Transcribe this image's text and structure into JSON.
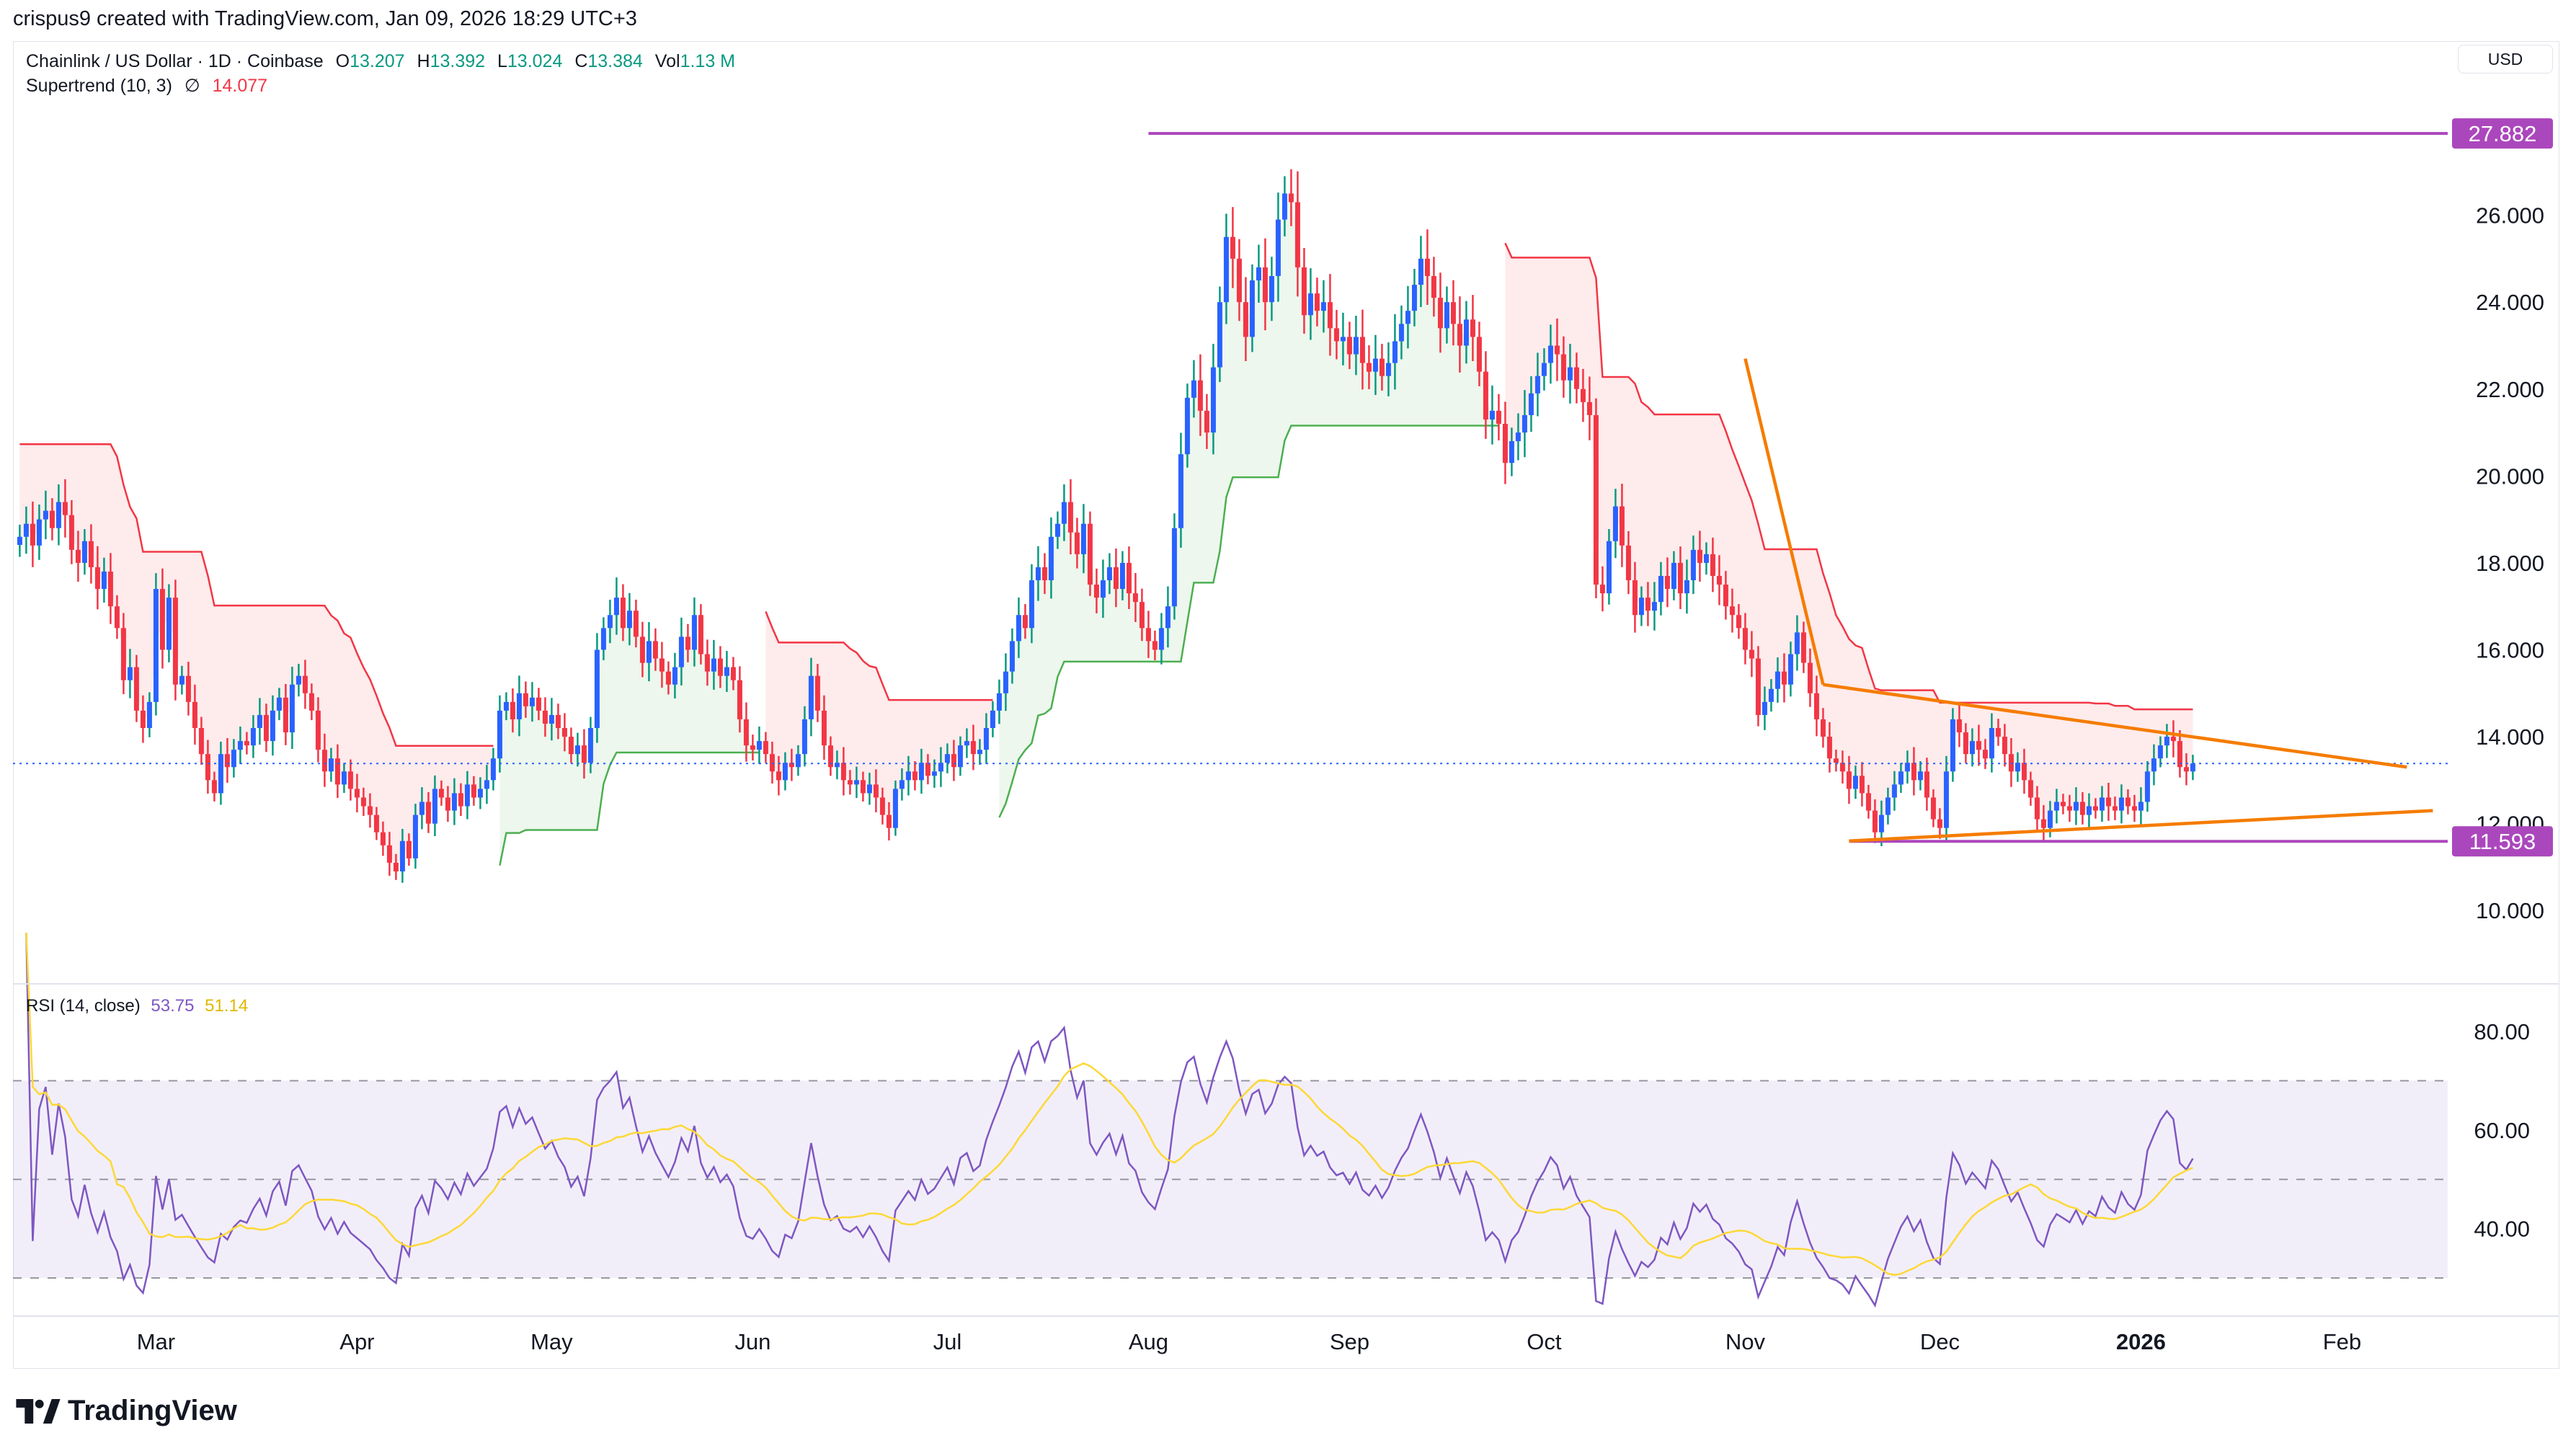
{
  "credit": "crispus9 created with TradingView.com, Jan 09, 2026 18:29 UTC+3",
  "symbol": {
    "name": "Chainlink / US Dollar · 1D · Coinbase",
    "o_label": "O",
    "o": "13.207",
    "h_label": "H",
    "h": "13.392",
    "l_label": "L",
    "l": "13.024",
    "c_label": "C",
    "c": "13.384",
    "vol_label": "Vol",
    "vol": "1.13 M"
  },
  "supertrend": {
    "label": "Supertrend (10, 3)",
    "symbol": "∅",
    "value": "14.077"
  },
  "rsi": {
    "label": "RSI (14, close)",
    "value": "53.75",
    "ma_value": "51.14"
  },
  "currency": "USD",
  "brand": "TradingView",
  "colors": {
    "up_body": "#2962ff",
    "up_wick": "#089981",
    "down": "#f23645",
    "st_up": "#4caf50",
    "st_down": "#f23645",
    "level": "#ab47bc",
    "trend": "#f57c00",
    "rsi": "#7e57c2",
    "rsi_ma": "#fdd835",
    "last_price": "#2962ff"
  },
  "chart_data": {
    "type": "candlestick",
    "interval": "1D",
    "start_date": "2025-02-08",
    "end_date": "2026-01-09",
    "closes": [
      18.6,
      18.9,
      18.4,
      19.0,
      19.2,
      18.8,
      19.4,
      19.1,
      18.3,
      18.0,
      18.5,
      17.9,
      17.4,
      17.8,
      17.0,
      16.5,
      15.3,
      15.6,
      14.6,
      14.2,
      14.8,
      17.4,
      16.0,
      17.2,
      15.2,
      15.4,
      14.8,
      14.2,
      13.6,
      13.0,
      12.7,
      13.6,
      13.3,
      13.7,
      13.9,
      13.8,
      14.2,
      14.5,
      13.9,
      14.6,
      14.9,
      14.1,
      15.2,
      15.4,
      15.0,
      14.6,
      13.7,
      13.2,
      13.5,
      12.9,
      13.2,
      12.8,
      12.6,
      12.4,
      12.2,
      11.8,
      11.5,
      11.1,
      10.9,
      11.6,
      11.2,
      12.2,
      12.5,
      12.0,
      12.8,
      12.6,
      12.3,
      12.7,
      12.4,
      12.9,
      12.6,
      12.8,
      13.0,
      13.5,
      14.6,
      14.8,
      14.4,
      15.0,
      14.7,
      14.9,
      14.6,
      14.3,
      14.5,
      14.2,
      14.0,
      13.6,
      13.8,
      13.4,
      14.2,
      16.0,
      16.5,
      16.8,
      17.2,
      16.5,
      16.9,
      16.3,
      15.7,
      16.2,
      15.8,
      15.5,
      15.2,
      15.6,
      16.3,
      16.0,
      16.8,
      15.9,
      15.5,
      15.8,
      15.4,
      15.6,
      15.3,
      14.4,
      13.8,
      13.7,
      13.9,
      13.6,
      13.2,
      13.0,
      13.4,
      13.3,
      13.6,
      14.4,
      15.4,
      14.6,
      13.8,
      13.3,
      13.4,
      13.0,
      12.9,
      13.0,
      12.7,
      12.9,
      12.6,
      12.2,
      11.9,
      12.8,
      13.0,
      13.2,
      13.0,
      13.4,
      13.1,
      13.2,
      13.4,
      13.6,
      13.3,
      13.8,
      13.9,
      13.6,
      13.7,
      14.2,
      14.6,
      15.0,
      15.5,
      16.2,
      16.8,
      16.5,
      17.6,
      17.9,
      17.6,
      18.6,
      18.9,
      19.4,
      18.7,
      18.2,
      18.9,
      17.5,
      17.2,
      17.6,
      17.9,
      17.4,
      18.0,
      17.3,
      17.1,
      16.5,
      16.2,
      16.0,
      16.5,
      17.0,
      18.8,
      20.5,
      21.8,
      22.2,
      21.5,
      21.0,
      22.5,
      24.0,
      25.5,
      25.0,
      24.0,
      23.2,
      24.5,
      24.8,
      24.0,
      24.6,
      25.9,
      26.5,
      26.3,
      24.8,
      23.7,
      24.2,
      23.8,
      24.0,
      23.4,
      23.1,
      23.2,
      22.8,
      23.2,
      22.6,
      22.4,
      22.7,
      22.3,
      22.6,
      23.1,
      23.5,
      23.8,
      24.4,
      25.0,
      24.6,
      24.1,
      23.4,
      24.0,
      23.5,
      23.0,
      23.6,
      23.2,
      22.4,
      21.3,
      21.5,
      21.2,
      20.3,
      20.8,
      21.0,
      21.4,
      21.9,
      22.3,
      22.6,
      23.0,
      22.8,
      22.2,
      22.5,
      22.0,
      21.7,
      21.4,
      17.5,
      17.3,
      18.5,
      19.3,
      18.4,
      17.6,
      16.8,
      17.2,
      16.9,
      17.1,
      17.7,
      17.4,
      18.0,
      17.3,
      17.6,
      18.3,
      18.0,
      18.2,
      17.7,
      17.5,
      17.0,
      16.8,
      16.5,
      16.0,
      15.8,
      14.5,
      14.8,
      15.1,
      15.5,
      15.2,
      15.9,
      16.4,
      15.7,
      15.0,
      14.4,
      14.0,
      13.5,
      13.4,
      13.2,
      12.8,
      13.1,
      12.7,
      12.3,
      11.8,
      12.2,
      12.6,
      12.9,
      13.2,
      13.4,
      13.0,
      13.2,
      12.6,
      12.1,
      11.9,
      13.2,
      14.4,
      14.1,
      13.6,
      13.9,
      13.7,
      13.5,
      14.2,
      14.0,
      13.6,
      13.2,
      13.4,
      13.0,
      12.6,
      12.1,
      11.9,
      12.3,
      12.5,
      12.4,
      12.3,
      12.5,
      12.2,
      12.4,
      12.3,
      12.6,
      12.4,
      12.3,
      12.6,
      12.4,
      12.3,
      12.5,
      13.2,
      13.5,
      13.8,
      14.0,
      13.9,
      13.3,
      13.2,
      13.384
    ],
    "last_price": 13.384,
    "y_ticks": [
      "10.000",
      "12.000",
      "14.000",
      "16.000",
      "18.000",
      "20.000",
      "22.000",
      "24.000",
      "26.000"
    ],
    "y_range": [
      8.6,
      29.1
    ],
    "x_ticks": [
      {
        "label": "Mar",
        "date": "2025-03-01"
      },
      {
        "label": "Apr",
        "date": "2025-04-01"
      },
      {
        "label": "May",
        "date": "2025-05-01"
      },
      {
        "label": "Jun",
        "date": "2025-06-01"
      },
      {
        "label": "Jul",
        "date": "2025-07-01"
      },
      {
        "label": "Aug",
        "date": "2025-08-01"
      },
      {
        "label": "Sep",
        "date": "2025-09-01"
      },
      {
        "label": "Oct",
        "date": "2025-10-01"
      },
      {
        "label": "Nov",
        "date": "2025-11-01"
      },
      {
        "label": "Dec",
        "date": "2025-12-01"
      },
      {
        "label": "2026",
        "date": "2026-01-01",
        "bold": true
      },
      {
        "label": "Feb",
        "date": "2026-02-01"
      }
    ],
    "levels": [
      {
        "price": 27.882,
        "label": "27.882",
        "from": "2025-08-01"
      },
      {
        "price": 11.593,
        "label": "11.593",
        "from": "2025-11-17"
      }
    ],
    "trendlines": [
      {
        "from": [
          "2025-11-01",
          22.7
        ],
        "to": [
          "2025-11-13",
          15.2
        ]
      },
      {
        "from": [
          "2025-11-13",
          15.2
        ],
        "to": [
          "2026-02-11",
          13.3
        ]
      },
      {
        "from": [
          "2025-11-17",
          11.6
        ],
        "to": [
          "2026-02-15",
          12.3
        ]
      }
    ],
    "rsi_ticks": [
      "40.00",
      "60.00",
      "80.00"
    ],
    "rsi_bands": [
      30,
      50,
      70
    ]
  }
}
